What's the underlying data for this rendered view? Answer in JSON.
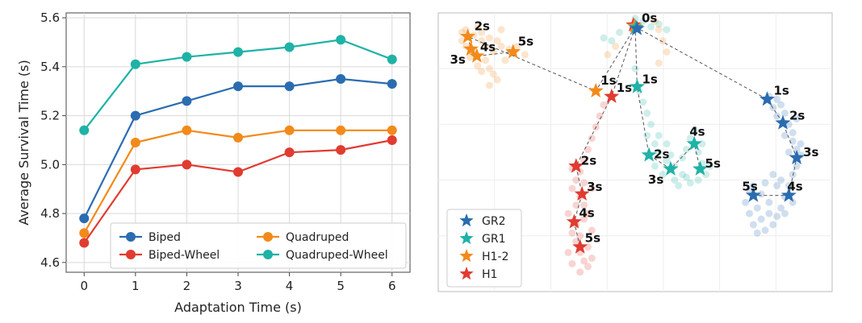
{
  "chart_data": [
    {
      "type": "line",
      "xlabel": "Adaptation Time (s)",
      "ylabel": "Average Survival Time (s)",
      "x": [
        0,
        1,
        2,
        3,
        4,
        5,
        6
      ],
      "xticks": [
        "0",
        "1",
        "2",
        "3",
        "4",
        "5",
        "6"
      ],
      "yticks": [
        "4.6",
        "4.8",
        "5.0",
        "5.2",
        "5.4",
        "5.6"
      ],
      "ylim": [
        4.56,
        5.62
      ],
      "grid": true,
      "legend_position": "bottom-right",
      "series": [
        {
          "name": "Biped",
          "color": "#2b6cb0",
          "values": [
            4.78,
            5.2,
            5.26,
            5.32,
            5.32,
            5.35,
            5.33
          ]
        },
        {
          "name": "Biped-Wheel",
          "color": "#e03c31",
          "values": [
            4.68,
            4.98,
            5.0,
            4.97,
            5.05,
            5.06,
            5.1
          ]
        },
        {
          "name": "Quadruped",
          "color": "#f28a1a",
          "values": [
            4.72,
            5.09,
            5.14,
            5.11,
            5.14,
            5.14,
            5.14
          ]
        },
        {
          "name": "Quadruped-Wheel",
          "color": "#1fb2a6",
          "values": [
            5.14,
            5.41,
            5.44,
            5.46,
            5.48,
            5.51,
            5.43
          ]
        }
      ]
    },
    {
      "type": "scatter",
      "title": "",
      "legend_position": "bottom-left",
      "origin": {
        "label": "0s",
        "x": 0.5,
        "y": 0.05
      },
      "series": [
        {
          "name": "GR2",
          "color": "#2b6cb0",
          "trajectory": [
            {
              "label": "1s",
              "x": 0.835,
              "y": 0.31
            },
            {
              "label": "2s",
              "x": 0.875,
              "y": 0.395
            },
            {
              "label": "3s",
              "x": 0.91,
              "y": 0.52
            },
            {
              "label": "4s",
              "x": 0.89,
              "y": 0.655
            },
            {
              "label": "5s",
              "x": 0.8,
              "y": 0.655
            }
          ],
          "cloud": [
            [
              0.84,
              0.3
            ],
            [
              0.86,
              0.31
            ],
            [
              0.87,
              0.33
            ],
            [
              0.88,
              0.36
            ],
            [
              0.89,
              0.4
            ],
            [
              0.9,
              0.43
            ],
            [
              0.9,
              0.46
            ],
            [
              0.91,
              0.49
            ],
            [
              0.92,
              0.51
            ],
            [
              0.91,
              0.55
            ],
            [
              0.9,
              0.58
            ],
            [
              0.89,
              0.62
            ],
            [
              0.88,
              0.66
            ],
            [
              0.87,
              0.7
            ],
            [
              0.86,
              0.73
            ],
            [
              0.85,
              0.76
            ],
            [
              0.83,
              0.78
            ],
            [
              0.81,
              0.79
            ],
            [
              0.8,
              0.76
            ],
            [
              0.79,
              0.72
            ],
            [
              0.78,
              0.68
            ],
            [
              0.8,
              0.62
            ],
            [
              0.82,
              0.65
            ],
            [
              0.84,
              0.68
            ],
            [
              0.86,
              0.62
            ],
            [
              0.85,
              0.58
            ],
            [
              0.87,
              0.6
            ],
            [
              0.89,
              0.5
            ],
            [
              0.88,
              0.44
            ],
            [
              0.86,
              0.37
            ],
            [
              0.82,
              0.74
            ],
            [
              0.84,
              0.72
            ],
            [
              0.88,
              0.72
            ],
            [
              0.9,
              0.68
            ],
            [
              0.83,
              0.61
            ],
            [
              0.81,
              0.7
            ],
            [
              0.79,
              0.64
            ],
            [
              0.92,
              0.47
            ],
            [
              0.91,
              0.38
            ],
            [
              0.85,
              0.34
            ]
          ]
        },
        {
          "name": "GR1",
          "color": "#1fb2a6",
          "trajectory": [
            {
              "label": "1s",
              "x": 0.505,
              "y": 0.265
            },
            {
              "label": "2s",
              "x": 0.535,
              "y": 0.51
            },
            {
              "label": "3s",
              "x": 0.59,
              "y": 0.56
            },
            {
              "label": "4s",
              "x": 0.65,
              "y": 0.47
            },
            {
              "label": "5s",
              "x": 0.665,
              "y": 0.56
            }
          ],
          "cloud": [
            [
              0.5,
              0.02
            ],
            [
              0.52,
              0.03
            ],
            [
              0.54,
              0.05
            ],
            [
              0.56,
              0.04
            ],
            [
              0.58,
              0.06
            ],
            [
              0.46,
              0.07
            ],
            [
              0.44,
              0.1
            ],
            [
              0.42,
              0.09
            ],
            [
              0.5,
              0.2
            ],
            [
              0.51,
              0.28
            ],
            [
              0.52,
              0.32
            ],
            [
              0.53,
              0.36
            ],
            [
              0.54,
              0.4
            ],
            [
              0.53,
              0.44
            ],
            [
              0.55,
              0.47
            ],
            [
              0.56,
              0.5
            ],
            [
              0.58,
              0.53
            ],
            [
              0.6,
              0.55
            ],
            [
              0.62,
              0.52
            ],
            [
              0.63,
              0.49
            ],
            [
              0.64,
              0.45
            ],
            [
              0.66,
              0.5
            ],
            [
              0.67,
              0.54
            ],
            [
              0.68,
              0.58
            ],
            [
              0.66,
              0.6
            ],
            [
              0.63,
              0.59
            ],
            [
              0.6,
              0.6
            ],
            [
              0.57,
              0.58
            ],
            [
              0.55,
              0.55
            ],
            [
              0.65,
              0.42
            ],
            [
              0.62,
              0.58
            ],
            [
              0.59,
              0.51
            ],
            [
              0.61,
              0.62
            ],
            [
              0.64,
              0.61
            ],
            [
              0.67,
              0.47
            ],
            [
              0.56,
              0.44
            ],
            [
              0.69,
              0.55
            ],
            [
              0.58,
              0.47
            ]
          ]
        },
        {
          "name": "H1-2",
          "color": "#f28a1a",
          "trajectory": [
            {
              "label": "1s",
              "x": 0.4,
              "y": 0.28
            },
            {
              "label": "2s",
              "x": 0.075,
              "y": 0.085
            },
            {
              "label": "3s",
              "x": 0.083,
              "y": 0.13
            },
            {
              "label": "4s",
              "x": 0.098,
              "y": 0.155
            },
            {
              "label": "5s",
              "x": 0.19,
              "y": 0.14
            }
          ],
          "cloud": [
            [
              0.06,
              0.07
            ],
            [
              0.07,
              0.06
            ],
            [
              0.09,
              0.08
            ],
            [
              0.11,
              0.07
            ],
            [
              0.13,
              0.09
            ],
            [
              0.15,
              0.1
            ],
            [
              0.16,
              0.12
            ],
            [
              0.14,
              0.14
            ],
            [
              0.12,
              0.17
            ],
            [
              0.13,
              0.2
            ],
            [
              0.14,
              0.22
            ],
            [
              0.15,
              0.24
            ],
            [
              0.13,
              0.26
            ],
            [
              0.11,
              0.21
            ],
            [
              0.1,
              0.19
            ],
            [
              0.08,
              0.16
            ],
            [
              0.07,
              0.12
            ],
            [
              0.06,
              0.1
            ],
            [
              0.18,
              0.13
            ],
            [
              0.2,
              0.12
            ],
            [
              0.22,
              0.15
            ],
            [
              0.17,
              0.17
            ],
            [
              0.55,
              0.03
            ],
            [
              0.56,
              0.06
            ],
            [
              0.57,
              0.1
            ],
            [
              0.58,
              0.14
            ],
            [
              0.56,
              0.18
            ],
            [
              0.45,
              0.12
            ],
            [
              0.43,
              0.15
            ],
            [
              0.16,
              0.06
            ],
            [
              0.12,
              0.12
            ],
            [
              0.09,
              0.14
            ],
            [
              0.11,
              0.1
            ],
            [
              0.1,
              0.05
            ]
          ]
        },
        {
          "name": "H1",
          "color": "#e03c31",
          "trajectory": [
            {
              "label": "1s",
              "x": 0.44,
              "y": 0.3
            },
            {
              "label": "2s",
              "x": 0.35,
              "y": 0.55
            },
            {
              "label": "3s",
              "x": 0.365,
              "y": 0.65
            },
            {
              "label": "4s",
              "x": 0.345,
              "y": 0.75
            },
            {
              "label": "5s",
              "x": 0.36,
              "y": 0.84
            }
          ],
          "cloud": [
            [
              0.42,
              0.33
            ],
            [
              0.41,
              0.37
            ],
            [
              0.4,
              0.41
            ],
            [
              0.39,
              0.45
            ],
            [
              0.38,
              0.49
            ],
            [
              0.37,
              0.53
            ],
            [
              0.36,
              0.57
            ],
            [
              0.35,
              0.6
            ],
            [
              0.34,
              0.63
            ],
            [
              0.36,
              0.66
            ],
            [
              0.37,
              0.69
            ],
            [
              0.38,
              0.72
            ],
            [
              0.37,
              0.74
            ],
            [
              0.35,
              0.76
            ],
            [
              0.34,
              0.79
            ],
            [
              0.35,
              0.82
            ],
            [
              0.36,
              0.86
            ],
            [
              0.37,
              0.89
            ],
            [
              0.38,
              0.91
            ],
            [
              0.36,
              0.93
            ],
            [
              0.34,
              0.9
            ],
            [
              0.33,
              0.86
            ],
            [
              0.33,
              0.72
            ],
            [
              0.39,
              0.78
            ],
            [
              0.38,
              0.84
            ],
            [
              0.39,
              0.88
            ],
            [
              0.35,
              0.69
            ],
            [
              0.34,
              0.56
            ],
            [
              0.37,
              0.61
            ],
            [
              0.39,
              0.63
            ],
            [
              0.36,
              0.8
            ]
          ]
        }
      ]
    }
  ]
}
